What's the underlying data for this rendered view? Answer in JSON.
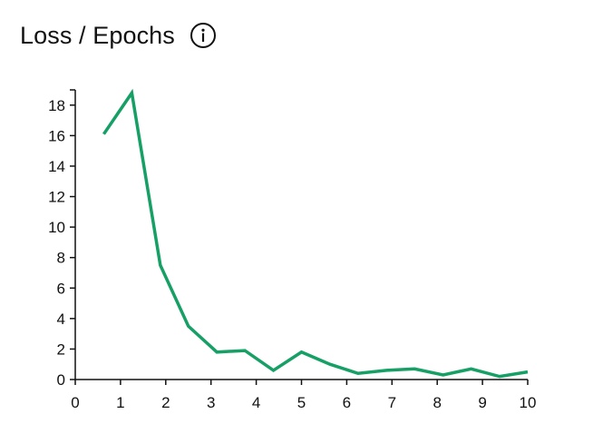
{
  "header": {
    "title": "Loss / Epochs",
    "info_icon": "info-circle-icon"
  },
  "chart_data": {
    "type": "line",
    "title": "Loss / Epochs",
    "xlabel": "",
    "ylabel": "",
    "xlim": [
      0,
      10
    ],
    "ylim": [
      0,
      19
    ],
    "x_ticks": [
      0,
      1,
      2,
      3,
      4,
      5,
      6,
      7,
      8,
      9,
      10
    ],
    "y_ticks": [
      0,
      2,
      4,
      6,
      8,
      10,
      12,
      14,
      16,
      18
    ],
    "grid": false,
    "legend": "none",
    "series": [
      {
        "color": "#16a065",
        "x": [
          0.63,
          1.25,
          1.88,
          2.5,
          3.13,
          3.75,
          4.38,
          5.0,
          5.63,
          6.25,
          6.88,
          7.5,
          8.13,
          8.75,
          9.38,
          10.0
        ],
        "values": [
          16.1,
          18.8,
          7.5,
          3.5,
          1.8,
          1.9,
          0.6,
          1.8,
          1.0,
          0.4,
          0.6,
          0.7,
          0.3,
          0.7,
          0.2,
          0.5
        ]
      }
    ]
  }
}
